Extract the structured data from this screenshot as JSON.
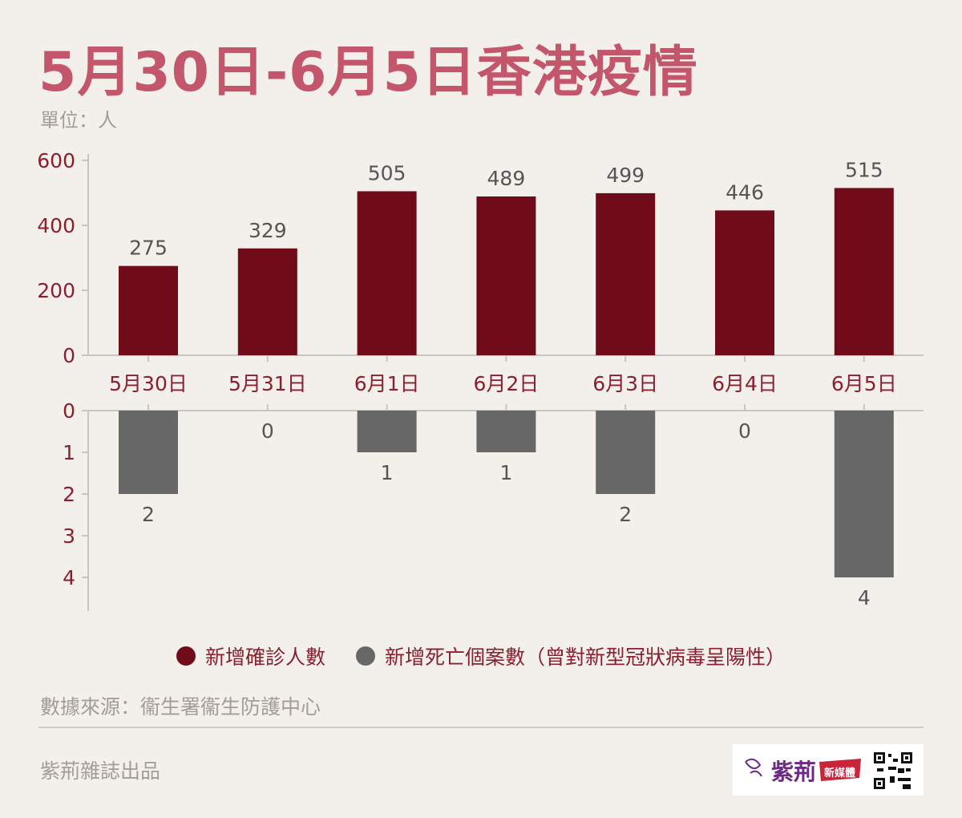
{
  "title": "5月30日-6月5日香港疫情",
  "unit": "單位：人",
  "chart_data": [
    {
      "type": "bar",
      "categories": [
        "5月30日",
        "5月31日",
        "6月1日",
        "6月2日",
        "6月3日",
        "6月4日",
        "6月5日"
      ],
      "series": [
        {
          "name": "新增確診人數",
          "values": [
            275,
            329,
            505,
            489,
            499,
            446,
            515
          ],
          "color": "#700c19"
        }
      ],
      "ylim": [
        0,
        600
      ],
      "yticks": [
        "0",
        "200",
        "400",
        "600"
      ],
      "grid": false
    },
    {
      "type": "bar",
      "orientation": "downward",
      "categories": [
        "5月30日",
        "5月31日",
        "6月1日",
        "6月2日",
        "6月3日",
        "6月4日",
        "6月5日"
      ],
      "series": [
        {
          "name": "新增死亡個案數（曾對新型冠狀病毒呈陽性）",
          "values": [
            2,
            0,
            1,
            1,
            2,
            0,
            4
          ],
          "color": "#676767"
        }
      ],
      "ylim": [
        0,
        4
      ],
      "yticks": [
        "0",
        "1",
        "2",
        "3",
        "4"
      ],
      "grid": false
    }
  ],
  "legend": {
    "position": "bottom",
    "items": [
      {
        "label": "新增確診人數",
        "color": "#700c19"
      },
      {
        "label": "新增死亡個案數（曾對新型冠狀病毒呈陽性）",
        "color": "#676767"
      }
    ]
  },
  "source": "數據來源：衞生署衞生防護中心",
  "credit": "紫荊雜誌出品",
  "logo": {
    "text": "紫荊",
    "badge": "新媒體"
  },
  "colors": {
    "title": "#c4566b",
    "axis_text": "#8a1f2f",
    "label_text": "#555555"
  }
}
